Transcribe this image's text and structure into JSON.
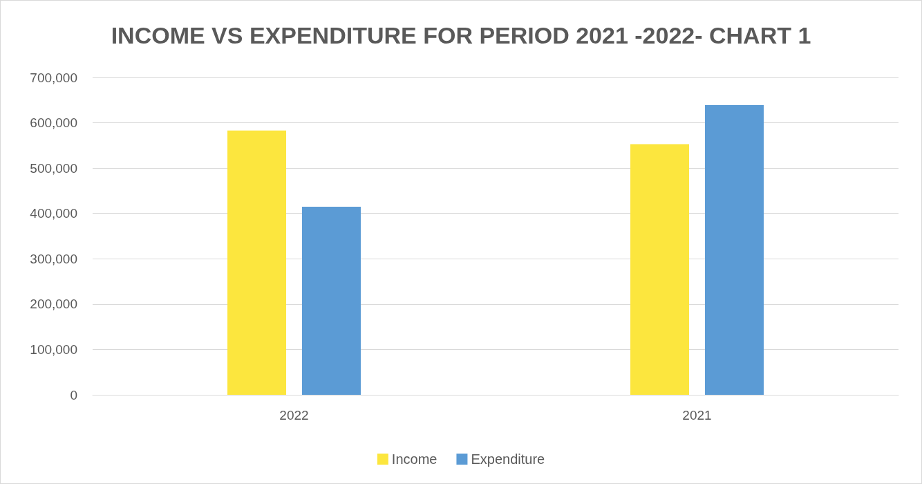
{
  "chart_data": {
    "type": "bar",
    "title": "INCOME VS EXPENDITURE FOR PERIOD 2021 -2022- CHART 1",
    "categories": [
      "2022",
      "2021"
    ],
    "series": [
      {
        "name": "Income",
        "color": "#fce63e",
        "values": [
          583000,
          553000
        ]
      },
      {
        "name": "Expenditure",
        "color": "#5b9bd5",
        "values": [
          415000,
          639000
        ]
      }
    ],
    "ylim": [
      0,
      700000
    ],
    "yticks": [
      {
        "value": 0,
        "label": "0"
      },
      {
        "value": 100000,
        "label": "100,000"
      },
      {
        "value": 200000,
        "label": "200,000"
      },
      {
        "value": 300000,
        "label": "300,000"
      },
      {
        "value": 400000,
        "label": "400,000"
      },
      {
        "value": 500000,
        "label": "500,000"
      },
      {
        "value": 600000,
        "label": "600,000"
      },
      {
        "value": 700000,
        "label": "700,000"
      }
    ],
    "grid": "y",
    "legend": "bottom"
  }
}
